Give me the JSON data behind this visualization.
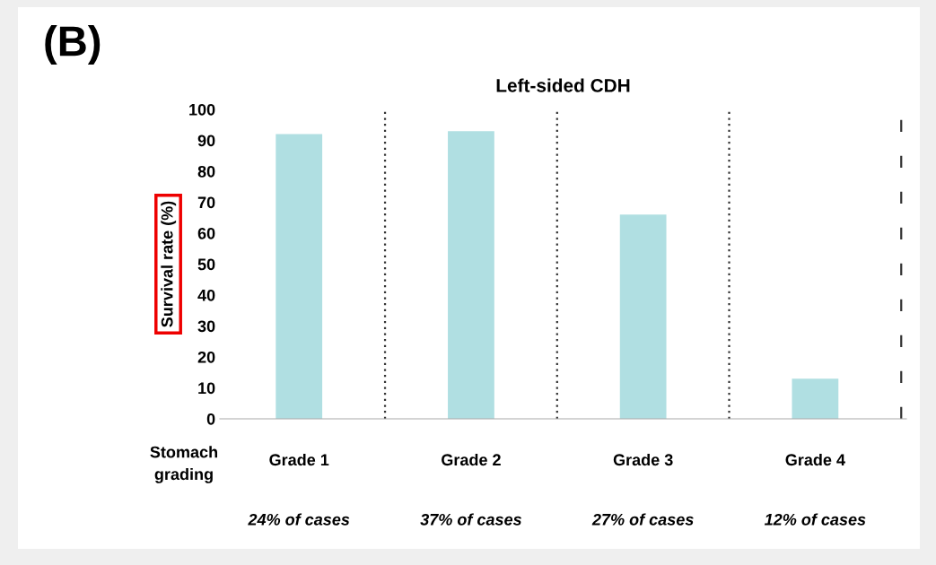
{
  "chart_data": {
    "type": "bar",
    "title": "Left-sided CDH",
    "ylabel": "Survival rate (%)",
    "categories": [
      "Grade 1",
      "Grade 2",
      "Grade 3",
      "Grade 4"
    ],
    "values": [
      92,
      93,
      66,
      13
    ],
    "color": "#b0dfe2",
    "ylim": [
      0,
      100
    ],
    "yticks": [
      0,
      10,
      20,
      30,
      40,
      50,
      60,
      70,
      80,
      90,
      100
    ],
    "grid": false,
    "legend": false,
    "annotations": [
      "(B)",
      "Stomach\ngrading",
      "24% of cases",
      "37% of cases",
      "27% of cases",
      "12% of cases"
    ]
  }
}
